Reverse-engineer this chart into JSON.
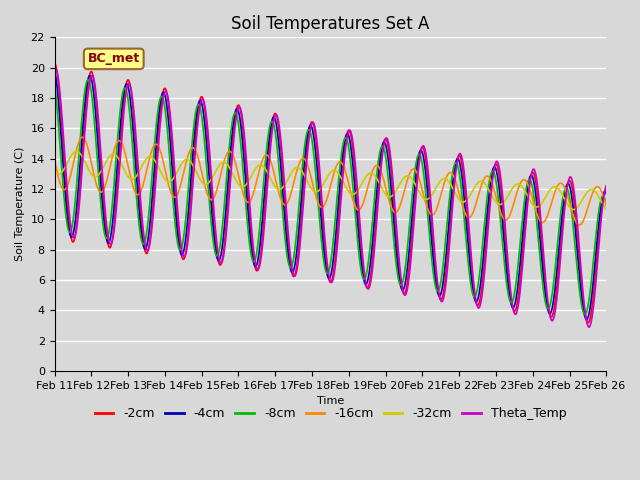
{
  "title": "Soil Temperatures Set A",
  "xlabel": "Time",
  "ylabel": "Soil Temperature (C)",
  "ylim": [
    0,
    22
  ],
  "tick_labels": [
    "Feb 11",
    "Feb 12",
    "Feb 13",
    "Feb 14",
    "Feb 15",
    "Feb 16",
    "Feb 17",
    "Feb 18",
    "Feb 19",
    "Feb 20",
    "Feb 21",
    "Feb 22",
    "Feb 23",
    "Feb 24",
    "Feb 25",
    "Feb 26"
  ],
  "legend_entries": [
    "-2cm",
    "-4cm",
    "-8cm",
    "-16cm",
    "-32cm",
    "Theta_Temp"
  ],
  "line_colors": [
    "#ff0000",
    "#0000bb",
    "#00bb00",
    "#ff8800",
    "#cccc00",
    "#cc00cc"
  ],
  "line_widths": [
    1.2,
    1.2,
    1.2,
    1.2,
    1.2,
    1.2
  ],
  "annotation_text": "BC_met",
  "fig_bg_color": "#d8d8d8",
  "plot_bg_color": "#d8d8d8",
  "title_fontsize": 12,
  "axis_fontsize": 8,
  "legend_fontsize": 9,
  "n_points": 1500
}
